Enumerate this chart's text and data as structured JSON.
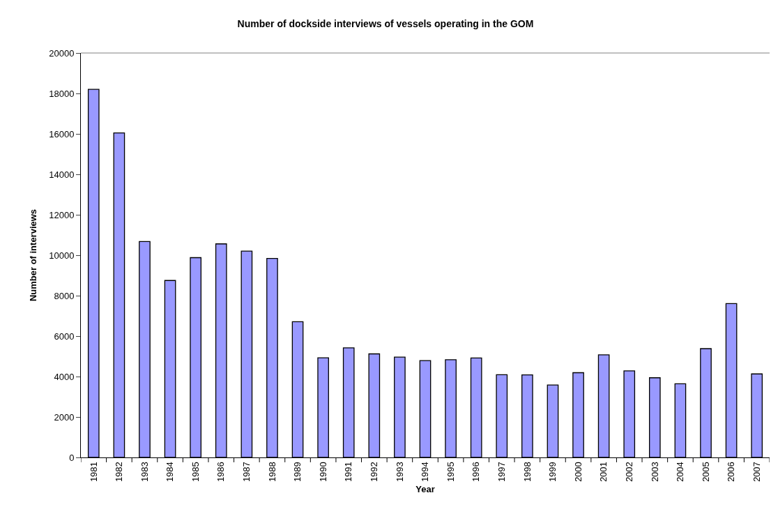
{
  "chart_data": {
    "type": "bar",
    "title": "Number of dockside interviews of vessels operating in the GOM",
    "xlabel": "Year",
    "ylabel": "Number of interviews",
    "categories": [
      "1981",
      "1982",
      "1983",
      "1984",
      "1985",
      "1986",
      "1987",
      "1988",
      "1989",
      "1990",
      "1991",
      "1992",
      "1993",
      "1994",
      "1995",
      "1996",
      "1997",
      "1998",
      "1999",
      "2000",
      "2001",
      "2002",
      "2003",
      "2004",
      "2005",
      "2006",
      "2007"
    ],
    "values": [
      18200,
      16050,
      10680,
      8750,
      9880,
      10560,
      10200,
      9840,
      6710,
      4930,
      5420,
      5120,
      4960,
      4790,
      4830,
      4920,
      4090,
      4080,
      3580,
      4190,
      5070,
      4280,
      3940,
      3640,
      5380,
      7610,
      4130
    ],
    "color": "#9999ff",
    "ylim": [
      0,
      20000
    ],
    "yticks": [
      0,
      2000,
      4000,
      6000,
      8000,
      10000,
      12000,
      14000,
      16000,
      18000,
      20000
    ],
    "grid": false
  }
}
